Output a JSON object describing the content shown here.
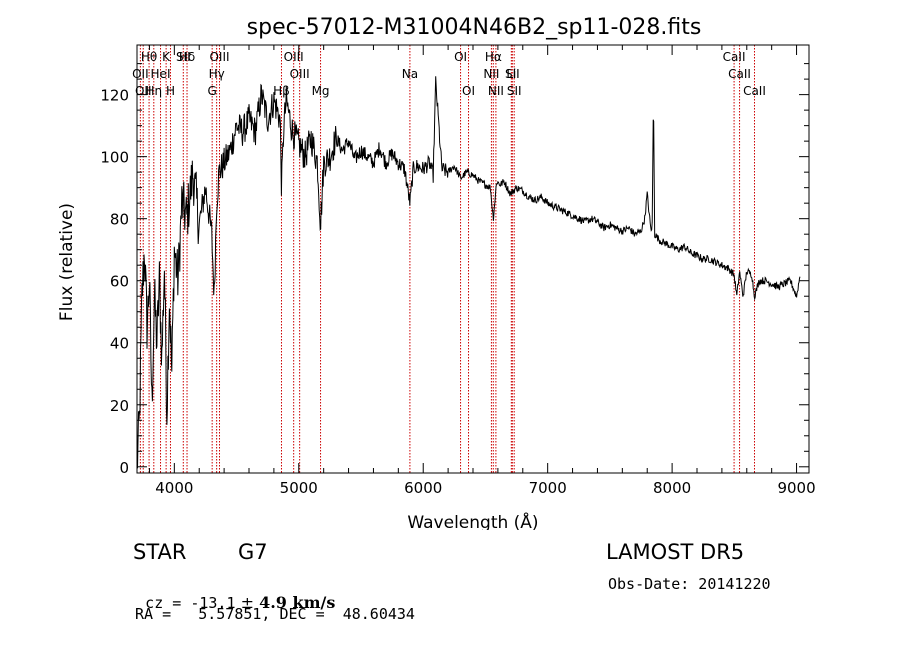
{
  "chart_data": {
    "type": "line",
    "title": "spec-57012-M31004N46B2_sp11-028.fits",
    "xlabel": "Wavelength (Å)",
    "ylabel": "Flux (relative)",
    "xlim": [
      3700,
      9100
    ],
    "ylim": [
      -2,
      136
    ],
    "xticks": [
      4000,
      5000,
      6000,
      7000,
      8000,
      9000
    ],
    "yticks": [
      0,
      20,
      40,
      60,
      80,
      100,
      120
    ],
    "grid": false,
    "series": [
      {
        "x": [
          3700,
          3720,
          3740,
          3760,
          3780,
          3800,
          3820,
          3840,
          3860,
          3880,
          3900,
          3920,
          3940,
          3960,
          3980,
          4000,
          4030,
          4060,
          4100,
          4150,
          4200,
          4250,
          4300,
          4320,
          4340,
          4360,
          4400,
          4450,
          4500,
          4550,
          4600,
          4650,
          4700,
          4750,
          4800,
          4850,
          4861,
          4880,
          4900,
          4950,
          5000,
          5050,
          5100,
          5150,
          5175,
          5200,
          5250,
          5300,
          5350,
          5400,
          5450,
          5500,
          5550,
          5600,
          5650,
          5700,
          5750,
          5800,
          5850,
          5893,
          5920,
          5950,
          6000,
          6050,
          6080,
          6100,
          6150,
          6200,
          6250,
          6300,
          6350,
          6400,
          6450,
          6500,
          6540,
          6563,
          6590,
          6620,
          6650,
          6700,
          6750,
          6800,
          6850,
          6900,
          6950,
          7000,
          7050,
          7100,
          7150,
          7200,
          7250,
          7300,
          7350,
          7400,
          7450,
          7500,
          7550,
          7600,
          7650,
          7700,
          7750,
          7780,
          7800,
          7830,
          7840,
          7850,
          7860,
          7900,
          7950,
          8000,
          8050,
          8100,
          8150,
          8200,
          8250,
          8300,
          8350,
          8400,
          8450,
          8498,
          8520,
          8542,
          8570,
          8600,
          8640,
          8662,
          8700,
          8750,
          8800,
          8850,
          8900,
          8950,
          9000,
          9030
        ],
        "y": [
          0,
          15,
          55,
          70,
          45,
          60,
          20,
          55,
          40,
          60,
          35,
          65,
          18,
          55,
          30,
          70,
          60,
          85,
          80,
          95,
          78,
          90,
          75,
          55,
          85,
          95,
          98,
          102,
          110,
          108,
          112,
          108,
          120,
          112,
          118,
          112,
          90,
          110,
          118,
          108,
          104,
          100,
          106,
          98,
          78,
          98,
          100,
          106,
          102,
          105,
          99,
          102,
          100,
          98,
          103,
          98,
          101,
          98,
          96,
          85,
          96,
          97,
          96,
          98,
          94,
          124,
          96,
          95,
          97,
          93,
          95,
          94,
          92,
          91,
          90,
          80,
          92,
          91,
          92,
          88,
          90,
          89,
          87,
          86,
          87,
          85,
          84,
          83,
          82,
          81,
          80,
          79,
          80,
          79,
          77,
          78,
          77,
          76,
          77,
          75,
          76,
          80,
          88,
          76,
          78,
          120,
          75,
          73,
          72,
          71,
          70,
          71,
          69,
          68,
          67,
          67,
          66,
          65,
          64,
          62,
          55,
          63,
          55,
          63,
          62,
          55,
          60,
          60,
          59,
          58,
          59,
          60,
          55,
          62
        ]
      }
    ],
    "lines": [
      {
        "wave": 3727,
        "labels": [
          "OII"
        ]
      },
      {
        "wave": 3750,
        "labels": [
          "OII"
        ]
      },
      {
        "wave": 3797,
        "labels": [
          "Hθ"
        ]
      },
      {
        "wave": 3835,
        "labels": [
          "Hη"
        ]
      },
      {
        "wave": 3889,
        "labels": [
          "HeI"
        ]
      },
      {
        "wave": 3934,
        "labels": [
          "K"
        ]
      },
      {
        "wave": 3969,
        "labels": [
          "H"
        ]
      },
      {
        "wave": 4072,
        "labels": [
          "SII"
        ]
      },
      {
        "wave": 4102,
        "labels": [
          "Hδ"
        ]
      },
      {
        "wave": 4304,
        "labels": [
          "G"
        ]
      },
      {
        "wave": 4340,
        "labels": [
          "Hγ"
        ]
      },
      {
        "wave": 4363,
        "labels": [
          "OIII"
        ]
      },
      {
        "wave": 4861,
        "labels": [
          "Hβ"
        ]
      },
      {
        "wave": 4959,
        "labels": [
          "OIII"
        ]
      },
      {
        "wave": 5007,
        "labels": [
          "OIII"
        ]
      },
      {
        "wave": 5175,
        "labels": [
          "Mg"
        ]
      },
      {
        "wave": 5893,
        "labels": [
          "Na"
        ]
      },
      {
        "wave": 6300,
        "labels": [
          "OI"
        ]
      },
      {
        "wave": 6364,
        "labels": [
          "OI"
        ]
      },
      {
        "wave": 6548,
        "labels": [
          "NII"
        ]
      },
      {
        "wave": 6563,
        "labels": [
          "Hα"
        ]
      },
      {
        "wave": 6584,
        "labels": [
          "NII"
        ]
      },
      {
        "wave": 6708,
        "labels": [
          "Li"
        ]
      },
      {
        "wave": 6716,
        "labels": [
          "SII"
        ]
      },
      {
        "wave": 6731,
        "labels": [
          "SII"
        ]
      },
      {
        "wave": 8498,
        "labels": [
          "CaII"
        ]
      },
      {
        "wave": 8542,
        "labels": [
          "CaII"
        ]
      },
      {
        "wave": 8662,
        "labels": [
          "CaII"
        ]
      }
    ],
    "label_rows": [
      [
        "Hθ",
        "K",
        "Hδ",
        "OIII",
        "OIII",
        "OI",
        "Hα",
        "SII",
        "CaII"
      ],
      [
        "OII",
        "HeI",
        "SII",
        "Hγ",
        "OIII",
        "Na",
        "NII",
        "Li",
        "CaII"
      ],
      [
        "OII",
        "Hη",
        "H",
        "G",
        "Hβ",
        "Mg",
        "OI",
        "NII",
        "SII",
        "CaII"
      ]
    ],
    "line_color": "#000000",
    "marker_color": "#cc0000"
  },
  "info": {
    "class": "STAR",
    "subclass": "G7",
    "release": "LAMOST DR5",
    "cz_prefix": "cz = ",
    "cz_value": "-13.1",
    "cz_pm": "±",
    "cz_err": "4.9 km/s",
    "obs_date": "Obs-Date: 20141220",
    "ra_dec": "RA =   5.57851, DEC =  48.60434"
  }
}
